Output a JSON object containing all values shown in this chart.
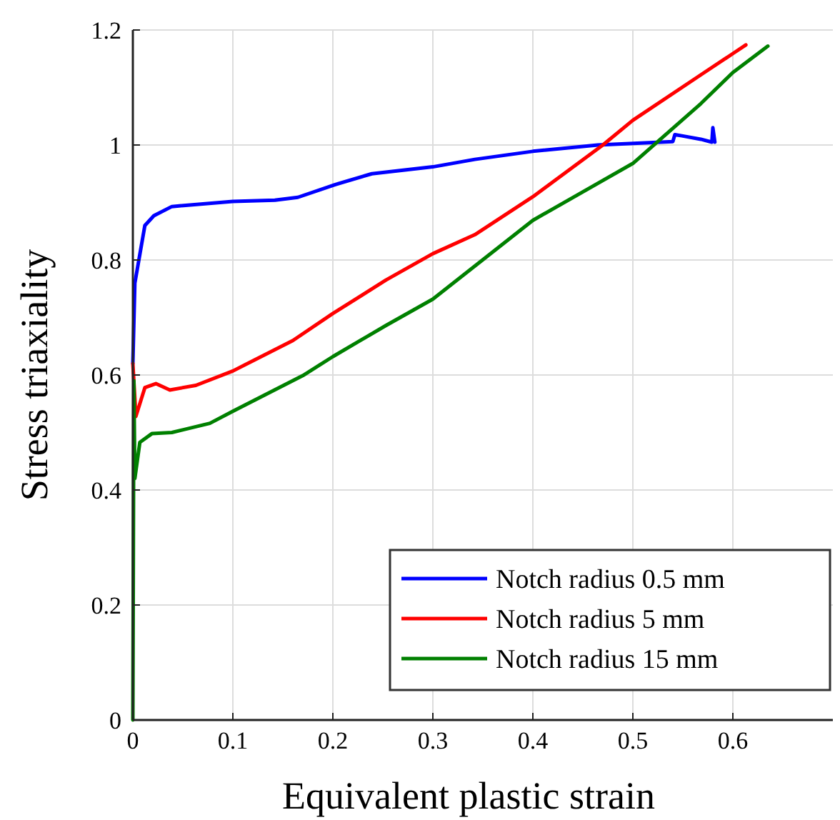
{
  "chart_data": {
    "type": "line",
    "xlabel": "Equivalent plastic strain",
    "ylabel": "Stress triaxiality",
    "xlim": [
      0,
      0.7
    ],
    "xticks": [
      0,
      0.1,
      0.2,
      0.3,
      0.4,
      0.5,
      0.6
    ],
    "ylim": [
      0,
      1.2
    ],
    "yticks": [
      0,
      0.2,
      0.4,
      0.6,
      0.8,
      1,
      1.2
    ],
    "grid": true,
    "legend": "bottom right",
    "line_style": "solid",
    "marker": "none",
    "series": [
      {
        "name": "Notch radius 0.5 mm",
        "color": "#0000ff",
        "x": [
          0,
          0.002,
          0.012,
          0.021,
          0.039,
          0.1,
          0.142,
          0.165,
          0.202,
          0.239,
          0.3,
          0.342,
          0.4,
          0.465,
          0.54,
          0.542,
          0.549,
          0.568,
          0.579,
          0.58,
          0.582
        ],
        "values": [
          0.62,
          0.76,
          0.86,
          0.877,
          0.893,
          0.902,
          0.904,
          0.909,
          0.931,
          0.95,
          0.962,
          0.975,
          0.989,
          1.0,
          1.006,
          1.018,
          1.016,
          1.01,
          1.005,
          1.03,
          1.005
        ]
      },
      {
        "name": "Notch radius 5 mm",
        "color": "#ff0000",
        "x": [
          0,
          0.003,
          0.012,
          0.023,
          0.037,
          0.063,
          0.1,
          0.16,
          0.2,
          0.253,
          0.3,
          0.342,
          0.4,
          0.47,
          0.5,
          0.568,
          0.6,
          0.613
        ],
        "values": [
          0.62,
          0.528,
          0.578,
          0.585,
          0.574,
          0.582,
          0.607,
          0.66,
          0.707,
          0.765,
          0.811,
          0.844,
          0.91,
          1.0,
          1.043,
          1.122,
          1.159,
          1.174
        ]
      },
      {
        "name": "Notch radius 15 mm",
        "color": "#008000",
        "x": [
          0,
          0.001,
          0.002,
          0.007,
          0.019,
          0.039,
          0.077,
          0.1,
          0.17,
          0.2,
          0.253,
          0.3,
          0.4,
          0.5,
          0.568,
          0.6,
          0.635
        ],
        "values": [
          0,
          0.59,
          0.42,
          0.483,
          0.498,
          0.5,
          0.516,
          0.537,
          0.599,
          0.632,
          0.686,
          0.732,
          0.869,
          0.968,
          1.072,
          1.126,
          1.172
        ]
      }
    ]
  }
}
